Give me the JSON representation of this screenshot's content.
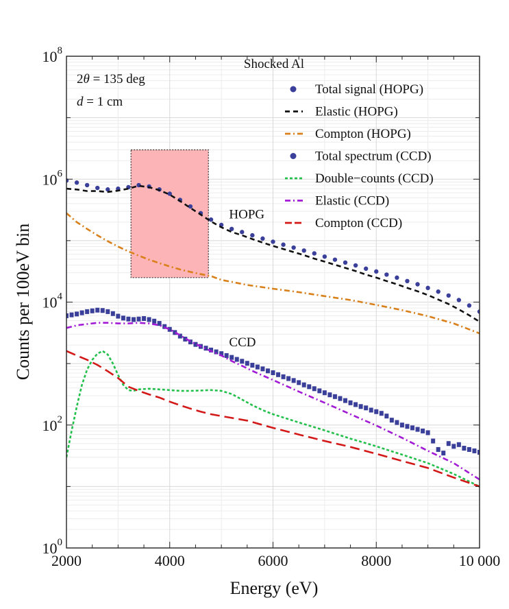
{
  "chart_data": {
    "type": "line",
    "title": "Shocked Al",
    "xlabel": "Energy (eV)",
    "ylabel": "Counts per 100eV bin",
    "x_scale": "linear",
    "y_scale": "log",
    "xlim": [
      2000,
      10000
    ],
    "ylim": [
      1,
      100000000
    ],
    "x_ticks": [
      2000,
      4000,
      6000,
      8000,
      10000
    ],
    "x_tick_labels": [
      "2000",
      "4000",
      "6000",
      "8000",
      "10 000"
    ],
    "y_ticks": [
      {
        "value": 1,
        "base": "10",
        "exp": "0"
      },
      {
        "value": 100,
        "base": "10",
        "exp": "2"
      },
      {
        "value": 10000,
        "base": "10",
        "exp": "4"
      },
      {
        "value": 1000000,
        "base": "10",
        "exp": "6"
      },
      {
        "value": 100000000,
        "base": "10",
        "exp": "8"
      }
    ],
    "grid": true,
    "legend_position": "top-right",
    "annotations": {
      "two_theta": {
        "prefix": "2",
        "symbol": "θ",
        "suffix": " = 135 deg"
      },
      "distance": {
        "symbol": "d",
        "suffix": " = 1 cm"
      },
      "hopg_label": {
        "text": "HOPG",
        "x": 5150,
        "y": 230000
      },
      "ccd_label": {
        "text": "CCD",
        "x": 5150,
        "y": 1900
      }
    },
    "highlight_region": {
      "x": [
        3250,
        4750
      ],
      "y": [
        25000,
        3000000
      ],
      "color": "#fdb4b6",
      "edge_color": "#333333"
    },
    "series": [
      {
        "name": "Total signal (HOPG)",
        "style": "points",
        "color": "#3a3f9a",
        "x": [
          2000,
          2200,
          2400,
          2600,
          2800,
          3000,
          3200,
          3400,
          3600,
          3800,
          4000,
          4200,
          4400,
          4600,
          4800,
          5000,
          5200,
          5400,
          5600,
          5800,
          6000,
          6200,
          6400,
          6600,
          6800,
          7000,
          7200,
          7400,
          7600,
          7800,
          8000,
          8200,
          8400,
          8600,
          8800,
          9000,
          9200,
          9400,
          9600,
          9800,
          10000
        ],
        "y": [
          950000,
          880000,
          800000,
          720000,
          680000,
          700000,
          740000,
          800000,
          760000,
          680000,
          580000,
          460000,
          360000,
          280000,
          220000,
          180000,
          155000,
          138000,
          122000,
          108000,
          96000,
          86000,
          77000,
          69000,
          62000,
          55000,
          49000,
          44000,
          39500,
          35000,
          31500,
          28000,
          25000,
          22000,
          19500,
          17000,
          14800,
          12800,
          10800,
          8800,
          7000
        ]
      },
      {
        "name": "Elastic (HOPG)",
        "style": "dashed",
        "color": "#111111",
        "x": [
          2000,
          2200,
          2400,
          2600,
          2800,
          3000,
          3200,
          3400,
          3600,
          3800,
          4000,
          4200,
          4400,
          4600,
          4800,
          5000,
          5200,
          5400,
          5600,
          5800,
          6000,
          6200,
          6400,
          6600,
          6800,
          7000,
          7200,
          7400,
          7600,
          7800,
          8000,
          8200,
          8400,
          8600,
          8800,
          9000,
          9200,
          9400,
          9600,
          9800,
          10000
        ],
        "y": [
          700000,
          680000,
          640000,
          640000,
          620000,
          650000,
          700000,
          780000,
          740000,
          660000,
          560000,
          440000,
          340000,
          265000,
          205000,
          165000,
          138000,
          122000,
          106000,
          93000,
          82000,
          73000,
          65000,
          58000,
          51000,
          45500,
          40500,
          36000,
          32000,
          28000,
          25000,
          22000,
          19500,
          17000,
          15000,
          13000,
          11000,
          9300,
          7600,
          6100,
          4800
        ]
      },
      {
        "name": "Compton (HOPG)",
        "style": "dashdot",
        "color": "#d9801a",
        "x": [
          2000,
          2200,
          2400,
          2600,
          2800,
          3000,
          3200,
          3400,
          3600,
          3800,
          4000,
          4200,
          4400,
          4600,
          4800,
          5000,
          5500,
          6000,
          6500,
          7000,
          7500,
          8000,
          8500,
          9000,
          9500,
          10000
        ],
        "y": [
          280000,
          200000,
          155000,
          122000,
          98000,
          80000,
          67000,
          57000,
          49000,
          43000,
          38000,
          34000,
          31000,
          28500,
          26500,
          23000,
          19000,
          16500,
          14500,
          12500,
          10800,
          9000,
          7400,
          5900,
          4500,
          3100
        ]
      },
      {
        "name": "Total spectrum (CCD)",
        "style": "squares",
        "color": "#3a3f9a",
        "x": [
          2000,
          2100,
          2200,
          2300,
          2400,
          2500,
          2600,
          2700,
          2800,
          2900,
          3000,
          3100,
          3200,
          3300,
          3400,
          3500,
          3600,
          3700,
          3800,
          3900,
          4000,
          4100,
          4200,
          4300,
          4400,
          4500,
          4600,
          4700,
          4800,
          4900,
          5000,
          5100,
          5200,
          5300,
          5400,
          5500,
          5600,
          5700,
          5800,
          5900,
          6000,
          6100,
          6200,
          6300,
          6400,
          6500,
          6600,
          6700,
          6800,
          6900,
          7000,
          7100,
          7200,
          7300,
          7400,
          7500,
          7600,
          7700,
          7800,
          7900,
          8000,
          8100,
          8200,
          8300,
          8400,
          8500,
          8600,
          8700,
          8800,
          8900,
          9000,
          9100,
          9200,
          9300,
          9400,
          9500,
          9600,
          9700,
          9800,
          9900,
          10000
        ],
        "y": [
          6000,
          6200,
          6400,
          6700,
          7000,
          7200,
          7400,
          7300,
          7000,
          6500,
          5900,
          5500,
          5300,
          5200,
          5300,
          5400,
          5200,
          4900,
          4500,
          4000,
          3600,
          3200,
          2800,
          2500,
          2250,
          2050,
          1900,
          1780,
          1660,
          1550,
          1450,
          1350,
          1260,
          1170,
          1090,
          1010,
          940,
          880,
          820,
          760,
          710,
          660,
          610,
          570,
          530,
          490,
          450,
          420,
          390,
          360,
          335,
          310,
          290,
          270,
          250,
          230,
          215,
          200,
          190,
          175,
          165,
          155,
          140,
          120,
          110,
          100,
          95,
          90,
          85,
          80,
          75,
          55,
          40,
          35,
          50,
          45,
          48,
          42,
          40,
          38,
          36
        ]
      },
      {
        "name": "Double−counts (CCD)",
        "style": "dotted",
        "color": "#22c04a",
        "x": [
          2000,
          2100,
          2200,
          2300,
          2400,
          2500,
          2600,
          2700,
          2800,
          2900,
          3000,
          3100,
          3200,
          3300,
          3400,
          3600,
          3800,
          4000,
          4200,
          4400,
          4600,
          4800,
          5000,
          5200,
          5400,
          5600,
          5800,
          6000,
          6500,
          7000,
          7500,
          8000,
          8500,
          9000,
          9500,
          10000
        ],
        "y": [
          30,
          80,
          200,
          450,
          800,
          1150,
          1450,
          1600,
          1400,
          1000,
          650,
          450,
          370,
          360,
          380,
          390,
          380,
          370,
          360,
          360,
          365,
          370,
          360,
          320,
          260,
          210,
          175,
          150,
          110,
          82,
          60,
          45,
          33,
          24,
          16,
          10
        ]
      },
      {
        "name": "Elastic (CCD)",
        "style": "dashdot",
        "color": "#a21ad6",
        "x": [
          2000,
          2200,
          2400,
          2600,
          2800,
          3000,
          3200,
          3400,
          3600,
          3800,
          4000,
          4200,
          4400,
          4600,
          4800,
          5000,
          5200,
          5400,
          5600,
          5800,
          6000,
          6500,
          7000,
          7500,
          8000,
          8500,
          9000,
          9500,
          10000
        ],
        "y": [
          3800,
          4200,
          4400,
          4600,
          4600,
          4500,
          4500,
          4600,
          4500,
          4200,
          3600,
          2900,
          2300,
          1900,
          1600,
          1350,
          1100,
          920,
          760,
          640,
          540,
          350,
          230,
          150,
          98,
          62,
          38,
          24,
          13
        ]
      },
      {
        "name": "Compton (CCD)",
        "style": "longdash",
        "color": "#d31818",
        "x": [
          2000,
          2200,
          2400,
          2600,
          2800,
          3000,
          3200,
          3400,
          3600,
          3800,
          4000,
          4200,
          4400,
          4600,
          4800,
          5000,
          5500,
          6000,
          6500,
          7000,
          7500,
          8000,
          8500,
          9000,
          9500,
          10000
        ],
        "y": [
          1600,
          1350,
          1150,
          950,
          750,
          580,
          420,
          360,
          315,
          280,
          240,
          210,
          185,
          165,
          150,
          140,
          118,
          90,
          70,
          55,
          44,
          34,
          26,
          20,
          14,
          10
        ]
      }
    ]
  }
}
